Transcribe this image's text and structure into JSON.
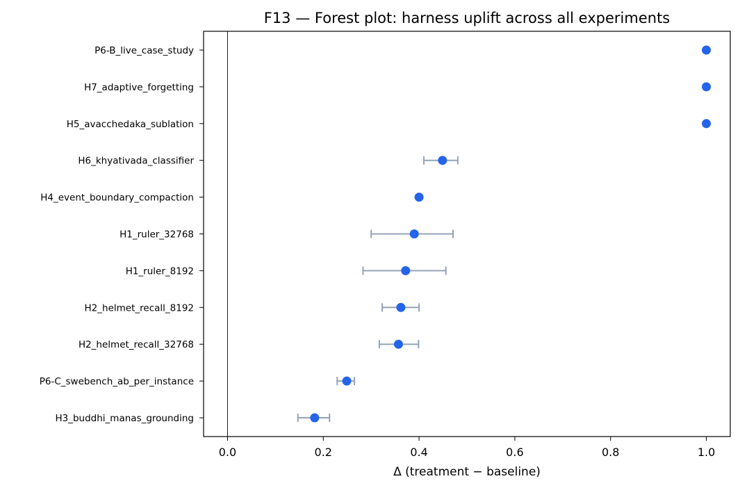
{
  "chart_data": {
    "type": "scatter",
    "subtype": "forest-plot",
    "title": "F13 — Forest plot: harness uplift across all experiments",
    "xlabel": "Δ (treatment − baseline)",
    "ylabel": "",
    "xlim": [
      -0.05,
      1.05
    ],
    "xticks": [
      "0.0",
      "0.2",
      "0.4",
      "0.6",
      "0.8",
      "1.0"
    ],
    "xtick_values": [
      0.0,
      0.2,
      0.4,
      0.6,
      0.8,
      1.0
    ],
    "reference_line_x": 0,
    "grid": false,
    "legend": "none",
    "point_color": "#2563eb",
    "errorbar_color": "#94a3b8",
    "categories": [
      "P6-B_live_case_study",
      "H7_adaptive_forgetting",
      "H5_avacchedaka_sublation",
      "H6_khyativada_classifier",
      "H4_event_boundary_compaction",
      "H1_ruler_32768",
      "H1_ruler_8192",
      "H2_helmet_recall_8192",
      "H2_helmet_recall_32768",
      "P6-C_swebench_ab_per_instance",
      "H3_buddhi_manas_grounding"
    ],
    "values": [
      1.0,
      1.0,
      1.0,
      0.449,
      0.4,
      0.39,
      0.372,
      0.362,
      0.357,
      0.249,
      0.182
    ],
    "ci_low": [
      null,
      null,
      null,
      0.41,
      null,
      0.3,
      0.283,
      0.323,
      0.317,
      0.229,
      0.147
    ],
    "ci_high": [
      null,
      null,
      null,
      0.481,
      null,
      0.471,
      0.456,
      0.4,
      0.399,
      0.265,
      0.213
    ]
  }
}
